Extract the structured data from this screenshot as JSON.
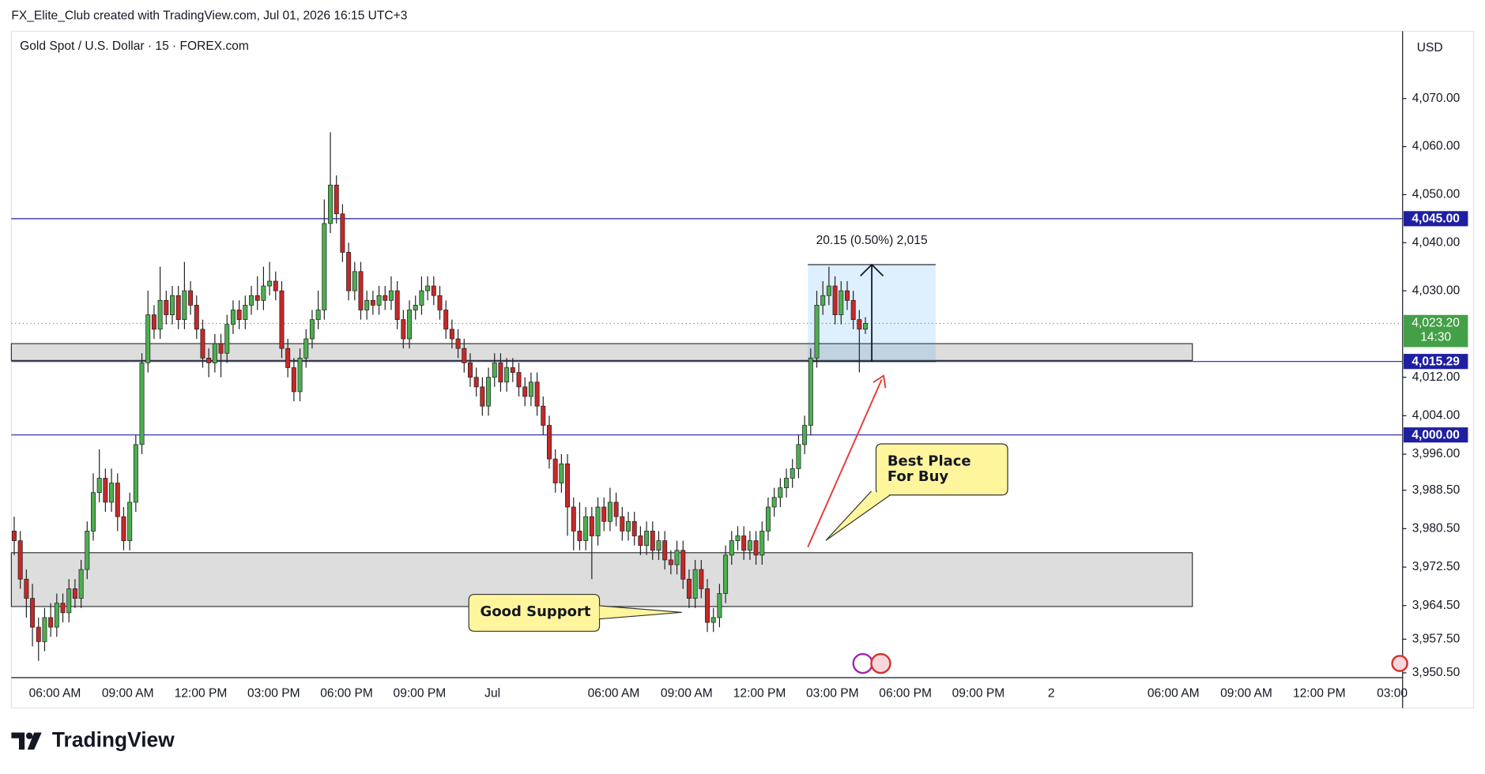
{
  "header": {
    "attribution": "FX_Elite_Club created with TradingView.com, Jul 01, 2026 16:15 UTC+3"
  },
  "chart_data": {
    "type": "candlestick",
    "title": "Gold Spot / U.S. Dollar · 15 · FOREX.com",
    "currency": "USD",
    "ylim": [
      3949.5,
      4084.0
    ],
    "yticks": [
      {
        "value": 4070,
        "label": "4,070.00"
      },
      {
        "value": 4060,
        "label": "4,060.00"
      },
      {
        "value": 4050,
        "label": "4,050.00"
      },
      {
        "value": 4040,
        "label": "4,040.00"
      },
      {
        "value": 4030,
        "label": "4,030.00"
      },
      {
        "value": 4012,
        "label": "4,012.00"
      },
      {
        "value": 4004,
        "label": "4,004.00"
      },
      {
        "value": 3996,
        "label": "3,996.00"
      },
      {
        "value": 3988.5,
        "label": "3,988.50"
      },
      {
        "value": 3980.5,
        "label": "3,980.50"
      },
      {
        "value": 3972.5,
        "label": "3,972.50"
      },
      {
        "value": 3964.5,
        "label": "3,964.50"
      },
      {
        "value": 3957.5,
        "label": "3,957.50"
      },
      {
        "value": 3950.5,
        "label": "3,950.50"
      }
    ],
    "xlabels": [
      "06:00 AM",
      "09:00 AM",
      "12:00 PM",
      "03:00 PM",
      "06:00 PM",
      "09:00 PM",
      "Jul",
      "06:00 AM",
      "09:00 AM",
      "12:00 PM",
      "03:00 PM",
      "06:00 PM",
      "09:00 PM",
      "2",
      "06:00 AM",
      "09:00 AM",
      "12:00 PM",
      "03:00"
    ],
    "up_color": "#4caf50",
    "down_color": "#c62828",
    "candles": [
      [
        3980,
        3983,
        3975,
        3978
      ],
      [
        3978,
        3980,
        3968,
        3970
      ],
      [
        3970,
        3972,
        3962,
        3966
      ],
      [
        3966,
        3969,
        3956,
        3960
      ],
      [
        3960,
        3962,
        3953,
        3957
      ],
      [
        3957,
        3964,
        3955,
        3962
      ],
      [
        3962,
        3965,
        3958,
        3960
      ],
      [
        3960,
        3967,
        3958,
        3965
      ],
      [
        3965,
        3967,
        3961,
        3963
      ],
      [
        3963,
        3970,
        3961,
        3968
      ],
      [
        3968,
        3970,
        3964,
        3966
      ],
      [
        3966,
        3974,
        3964,
        3972
      ],
      [
        3972,
        3982,
        3970,
        3980
      ],
      [
        3980,
        3992,
        3978,
        3988
      ],
      [
        3988,
        3997,
        3986,
        3991
      ],
      [
        3991,
        3993,
        3984,
        3986
      ],
      [
        3986,
        3993,
        3984,
        3990
      ],
      [
        3990,
        3992,
        3980,
        3983
      ],
      [
        3983,
        3985,
        3976,
        3978
      ],
      [
        3978,
        3988,
        3976,
        3986
      ],
      [
        3986,
        4000,
        3984,
        3998
      ],
      [
        3998,
        4017,
        3996,
        4015
      ],
      [
        4015,
        4030,
        4013,
        4025
      ],
      [
        4025,
        4027,
        4020,
        4022
      ],
      [
        4022,
        4035,
        4020,
        4028
      ],
      [
        4028,
        4030,
        4023,
        4025
      ],
      [
        4025,
        4031,
        4023,
        4029
      ],
      [
        4029,
        4031,
        4022,
        4024
      ],
      [
        4024,
        4036,
        4022,
        4030
      ],
      [
        4030,
        4032,
        4025,
        4027
      ],
      [
        4027,
        4029,
        4020,
        4022
      ],
      [
        4022,
        4024,
        4014,
        4016
      ],
      [
        4016,
        4018,
        4012,
        4015
      ],
      [
        4015,
        4021,
        4013,
        4019
      ],
      [
        4019,
        4021,
        4012,
        4017
      ],
      [
        4017,
        4025,
        4015,
        4023
      ],
      [
        4023,
        4028,
        4021,
        4026
      ],
      [
        4026,
        4028,
        4022,
        4024
      ],
      [
        4024,
        4029,
        4022,
        4027
      ],
      [
        4027,
        4031,
        4025,
        4029
      ],
      [
        4029,
        4033,
        4026,
        4028
      ],
      [
        4028,
        4035,
        4026,
        4031
      ],
      [
        4031,
        4036,
        4029,
        4032
      ],
      [
        4032,
        4034,
        4028,
        4030
      ],
      [
        4030,
        4032,
        4016,
        4018
      ],
      [
        4018,
        4020,
        4012,
        4014
      ],
      [
        4014,
        4016,
        4007,
        4009
      ],
      [
        4009,
        4018,
        4007,
        4016
      ],
      [
        4016,
        4022,
        4014,
        4020
      ],
      [
        4020,
        4026,
        4018,
        4024
      ],
      [
        4024,
        4030,
        4022,
        4026
      ],
      [
        4026,
        4049,
        4024,
        4044
      ],
      [
        4044,
        4063,
        4042,
        4052
      ],
      [
        4052,
        4054,
        4044,
        4046
      ],
      [
        4046,
        4048,
        4036,
        4038
      ],
      [
        4038,
        4040,
        4028,
        4030
      ],
      [
        4030,
        4036,
        4028,
        4034
      ],
      [
        4034,
        4036,
        4024,
        4026
      ],
      [
        4026,
        4030,
        4024,
        4028
      ],
      [
        4028,
        4030,
        4025,
        4027
      ],
      [
        4027,
        4031,
        4025,
        4029
      ],
      [
        4029,
        4031,
        4026,
        4028
      ],
      [
        4028,
        4033,
        4026,
        4030
      ],
      [
        4030,
        4032,
        4022,
        4024
      ],
      [
        4024,
        4026,
        4018,
        4020
      ],
      [
        4020,
        4028,
        4018,
        4026
      ],
      [
        4026,
        4029,
        4024,
        4027
      ],
      [
        4027,
        4033,
        4025,
        4030
      ],
      [
        4030,
        4033,
        4028,
        4031
      ],
      [
        4031,
        4033,
        4027,
        4029
      ],
      [
        4029,
        4031,
        4024,
        4026
      ],
      [
        4026,
        4028,
        4020,
        4022
      ],
      [
        4022,
        4024,
        4018,
        4020
      ],
      [
        4020,
        4022,
        4016,
        4018
      ],
      [
        4018,
        4020,
        4013,
        4015
      ],
      [
        4015,
        4017,
        4010,
        4012
      ],
      [
        4012,
        4014,
        4008,
        4010
      ],
      [
        4010,
        4012,
        4004,
        4006
      ],
      [
        4006,
        4014,
        4004,
        4012
      ],
      [
        4012,
        4017,
        4010,
        4015
      ],
      [
        4015,
        4017,
        4009,
        4011
      ],
      [
        4011,
        4016,
        4009,
        4014
      ],
      [
        4014,
        4016,
        4011,
        4013
      ],
      [
        4013,
        4015,
        4008,
        4010
      ],
      [
        4010,
        4012,
        4006,
        4008
      ],
      [
        4008,
        4013,
        4006,
        4011
      ],
      [
        4011,
        4013,
        4004,
        4006
      ],
      [
        4006,
        4008,
        4000,
        4002
      ],
      [
        4002,
        4004,
        3993,
        3995
      ],
      [
        3995,
        3997,
        3988,
        3990
      ],
      [
        3990,
        3996,
        3988,
        3994
      ],
      [
        3994,
        3996,
        3979,
        3985
      ],
      [
        3985,
        3987,
        3976,
        3980
      ],
      [
        3980,
        3986,
        3976,
        3978
      ],
      [
        3978,
        3985,
        3976,
        3983
      ],
      [
        3983,
        3985,
        3970,
        3979
      ],
      [
        3979,
        3987,
        3977,
        3985
      ],
      [
        3985,
        3987,
        3980,
        3982
      ],
      [
        3982,
        3989,
        3980,
        3986
      ],
      [
        3986,
        3988,
        3981,
        3983
      ],
      [
        3983,
        3985,
        3978,
        3980
      ],
      [
        3980,
        3984,
        3978,
        3982
      ],
      [
        3982,
        3984,
        3977,
        3979
      ],
      [
        3979,
        3981,
        3975,
        3977
      ],
      [
        3977,
        3982,
        3975,
        3980
      ],
      [
        3980,
        3982,
        3974,
        3976
      ],
      [
        3976,
        3980,
        3974,
        3978
      ],
      [
        3978,
        3980,
        3972,
        3974
      ],
      [
        3974,
        3976,
        3971,
        3973
      ],
      [
        3973,
        3978,
        3971,
        3976
      ],
      [
        3976,
        3978,
        3968,
        3970
      ],
      [
        3970,
        3972,
        3964,
        3966
      ],
      [
        3966,
        3974,
        3964,
        3972
      ],
      [
        3972,
        3974,
        3966,
        3968
      ],
      [
        3968,
        3970,
        3959,
        3961
      ],
      [
        3961,
        3964,
        3959,
        3962
      ],
      [
        3962,
        3969,
        3960,
        3967
      ],
      [
        3967,
        3977,
        3965,
        3975
      ],
      [
        3975,
        3980,
        3973,
        3978
      ],
      [
        3978,
        3981,
        3976,
        3979
      ],
      [
        3979,
        3981,
        3974,
        3976
      ],
      [
        3976,
        3980,
        3974,
        3978
      ],
      [
        3978,
        3980,
        3973,
        3975
      ],
      [
        3975,
        3982,
        3973,
        3980
      ],
      [
        3980,
        3987,
        3978,
        3985
      ],
      [
        3985,
        3989,
        3983,
        3987
      ],
      [
        3987,
        3991,
        3985,
        3989
      ],
      [
        3989,
        3993,
        3987,
        3991
      ],
      [
        3991,
        3995,
        3989,
        3993
      ],
      [
        3993,
        4000,
        3991,
        3998
      ],
      [
        3998,
        4004,
        3996,
        4002
      ],
      [
        4002,
        4018,
        4000,
        4016
      ],
      [
        4016,
        4030,
        4014,
        4027
      ],
      [
        4027,
        4032,
        4025,
        4029
      ],
      [
        4029,
        4035,
        4027,
        4031
      ],
      [
        4031,
        4033,
        4023,
        4025
      ],
      [
        4025,
        4032,
        4023,
        4030
      ],
      [
        4030,
        4032,
        4026,
        4028
      ],
      [
        4028,
        4030,
        4022,
        4024
      ],
      [
        4024,
        4026,
        4013,
        4022
      ],
      [
        4022,
        4024.5,
        4021,
        4023.2
      ]
    ],
    "levels": [
      {
        "value": 4045,
        "label": "4,045.00"
      },
      {
        "value": 4015.29,
        "label": "4,015.29"
      },
      {
        "value": 4000,
        "label": "4,000.00"
      }
    ],
    "level_color": "#1f1fa3",
    "last_price": {
      "value": 4023.2,
      "label": "4,023.20",
      "countdown": "14:30"
    },
    "zones": [
      {
        "low": 4015.5,
        "high": 4019.0
      },
      {
        "low": 3964.3,
        "high": 3975.5
      }
    ],
    "measure": {
      "label": "20.15 (0.50%) 2,015",
      "low": 4015.29,
      "high": 4035.44
    },
    "annotations": [
      "Best Place For Buy",
      "Good Support"
    ]
  },
  "footer": {
    "brand": "TradingView"
  }
}
